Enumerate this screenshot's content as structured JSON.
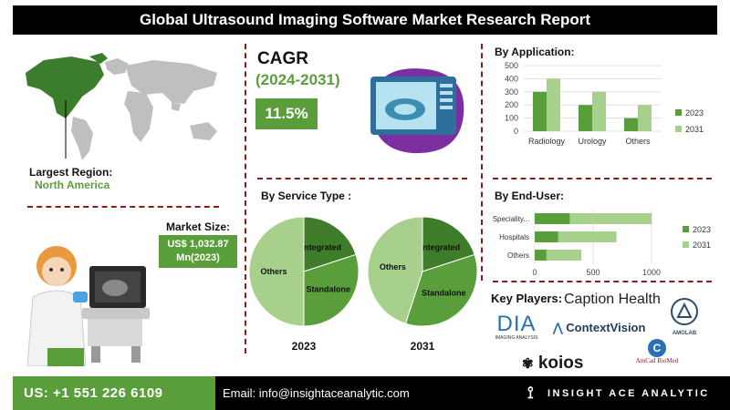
{
  "title": "Global Ultrasound Imaging Software Market Research Report",
  "largest_region": {
    "label": "Largest Region:",
    "value": "North America"
  },
  "market_size": {
    "label": "Market Size:",
    "line1": "US$ 1,032.87",
    "line2": "Mn(2023)"
  },
  "cagr": {
    "title": "CAGR",
    "years": "(2024-2031)",
    "value": "11.5%"
  },
  "colors": {
    "green_dark": "#5a9e3c",
    "green_light": "#a8d08d",
    "title_bg": "#000000",
    "divider": "#8b1a1a"
  },
  "key_players": {
    "label": "Key Players:",
    "names": [
      "Caption Health",
      "DIA",
      "IMAGING ANALYSIS",
      "ContextVision",
      "AMOLAB",
      "koios",
      "AmCad BioMed"
    ]
  },
  "footer": {
    "phone": "US: +1 551 226 6109",
    "email": "Email: info@insightaceanalytic.com",
    "brand": "INSIGHT ACE ANALYTIC"
  },
  "chart_data": [
    {
      "type": "bar",
      "title": "By Application:",
      "categories": [
        "Radiology",
        "Urology",
        "Others"
      ],
      "series": [
        {
          "name": "2023",
          "values": [
            300,
            200,
            100
          ]
        },
        {
          "name": "2031",
          "values": [
            400,
            300,
            200
          ]
        }
      ],
      "yticks": [
        0,
        100,
        200,
        300,
        400,
        500
      ],
      "ylim": [
        0,
        500
      ],
      "legend": "right",
      "grid": true
    },
    {
      "type": "bar",
      "orientation": "horizontal",
      "title": "By End-User:",
      "categories": [
        "Speciality...",
        "Hospitals",
        "Others"
      ],
      "series": [
        {
          "name": "2023",
          "values": [
            300,
            200,
            100
          ]
        },
        {
          "name": "2031",
          "values": [
            700,
            500,
            300
          ]
        }
      ],
      "xticks": [
        0,
        500,
        1000
      ],
      "xlim": [
        0,
        1000
      ],
      "legend": "right",
      "grid": true
    },
    {
      "type": "pie",
      "title": "By Service Type :",
      "charts": [
        {
          "label": "2023",
          "slices": [
            {
              "name": "Integrated",
              "value": 20
            },
            {
              "name": "Standalone",
              "value": 30
            },
            {
              "name": "Others",
              "value": 50
            }
          ]
        },
        {
          "label": "2031",
          "slices": [
            {
              "name": "Integrated",
              "value": 20
            },
            {
              "name": "Standalone",
              "value": 35
            },
            {
              "name": "Others",
              "value": 45
            }
          ]
        }
      ]
    }
  ]
}
